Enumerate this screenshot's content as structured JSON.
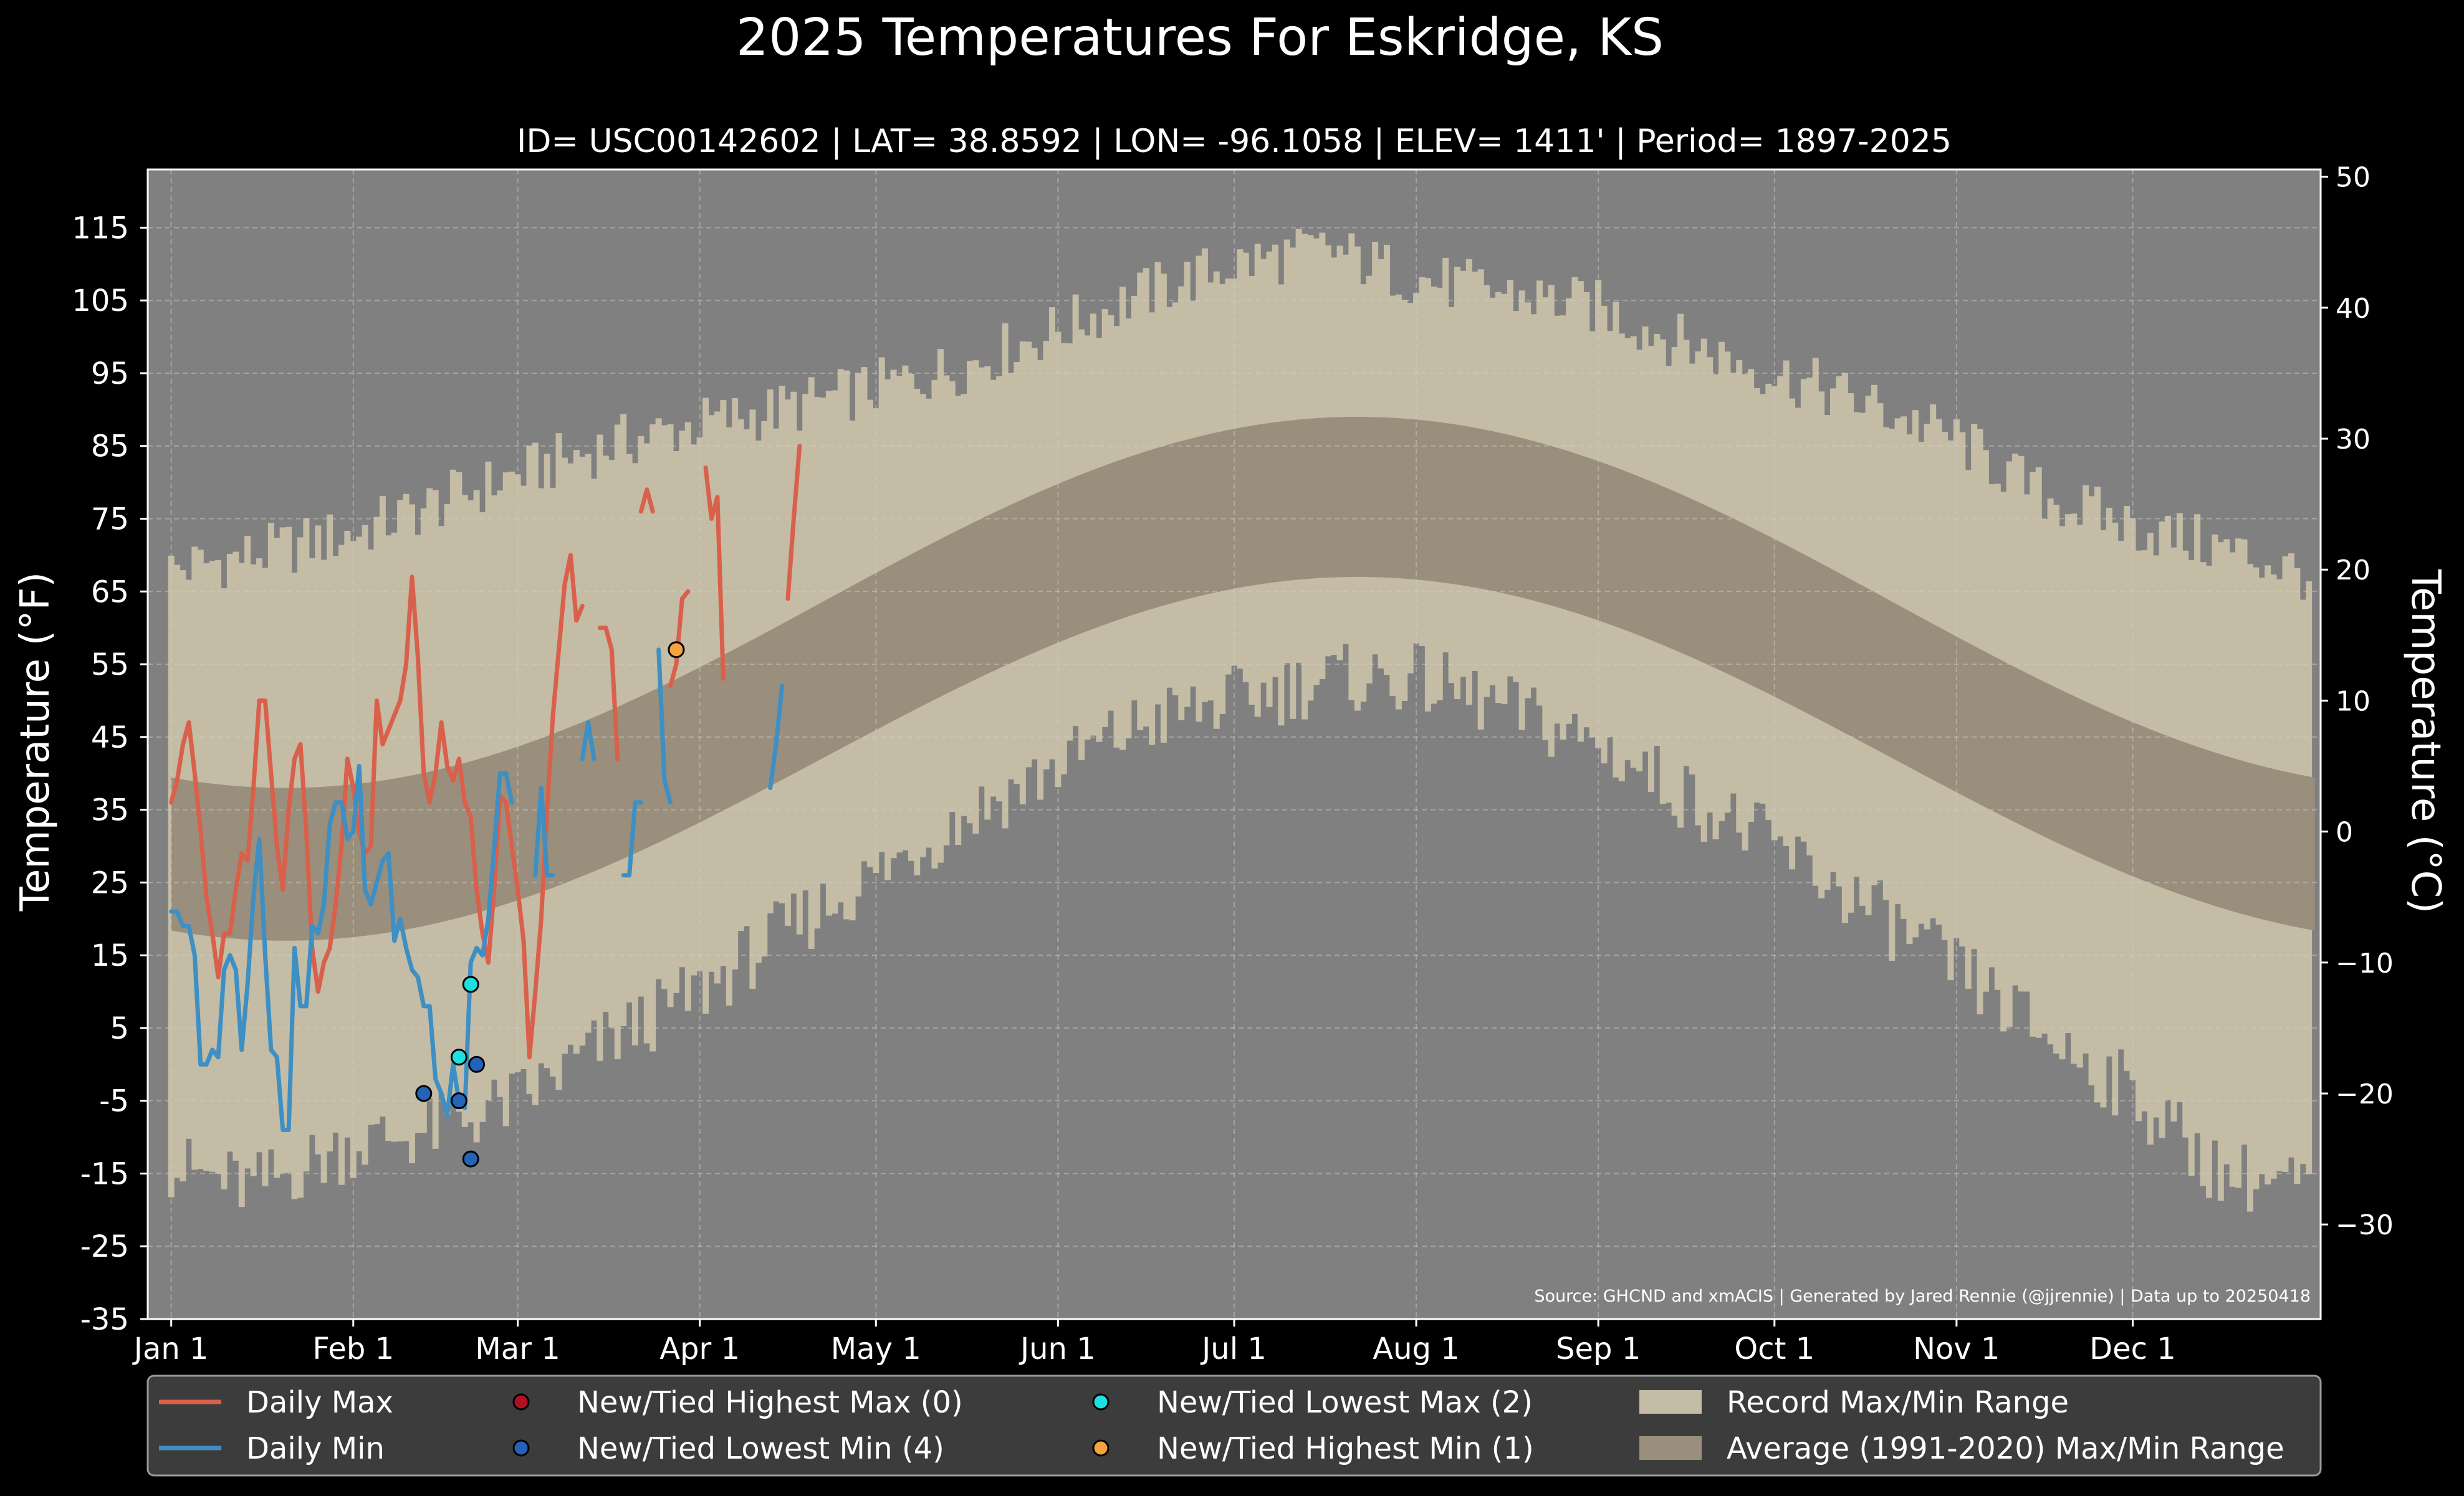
{
  "chart_data": {
    "type": "line",
    "title": "2025 Temperatures For Eskridge, KS",
    "subtitle": "ID= USC00142602 | LAT= 38.8592 | LON= -96.1058 | ELEV= 1411' | Period= 1897-2025",
    "ylabel_left": "Temperature ($^\\circ$F)",
    "ylabel_left_display": "Temperature (°F)",
    "ylabel_right_display": "Temperature (°C)",
    "ylim": [
      -35,
      123
    ],
    "yticks_left": [
      -35,
      -25,
      -15,
      -5,
      5,
      15,
      25,
      35,
      45,
      55,
      65,
      75,
      85,
      95,
      105,
      115
    ],
    "yticks_right": [
      -30,
      -20,
      -10,
      0,
      10,
      20,
      30,
      40,
      50
    ],
    "xlim_doy": [
      -3,
      367
    ],
    "xticks": [
      {
        "label": "Jan 1",
        "doy": 1
      },
      {
        "label": "Feb 1",
        "doy": 32
      },
      {
        "label": "Mar 1",
        "doy": 60
      },
      {
        "label": "Apr 1",
        "doy": 91
      },
      {
        "label": "May 1",
        "doy": 121
      },
      {
        "label": "Jun 1",
        "doy": 152
      },
      {
        "label": "Jul 1",
        "doy": 182
      },
      {
        "label": "Aug 1",
        "doy": 213
      },
      {
        "label": "Sep 1",
        "doy": 244
      },
      {
        "label": "Oct 1",
        "doy": 274
      },
      {
        "label": "Nov 1",
        "doy": 305
      },
      {
        "label": "Dec 1",
        "doy": 335
      }
    ],
    "grid": true,
    "legend_position": "bottom",
    "source_note": "Source: GHCND and xmACIS | Generated by Jared Rennie (@jjrennie) | Data up to 20250418",
    "record_max_anchors": [
      [
        1,
        68
      ],
      [
        15,
        70
      ],
      [
        32,
        73
      ],
      [
        46,
        77
      ],
      [
        60,
        81
      ],
      [
        75,
        85
      ],
      [
        91,
        88
      ],
      [
        105,
        90
      ],
      [
        121,
        93
      ],
      [
        136,
        96
      ],
      [
        152,
        101
      ],
      [
        167,
        106
      ],
      [
        182,
        110
      ],
      [
        198,
        112
      ],
      [
        213,
        108
      ],
      [
        228,
        106
      ],
      [
        244,
        104
      ],
      [
        259,
        99
      ],
      [
        274,
        95
      ],
      [
        289,
        91
      ],
      [
        305,
        86
      ],
      [
        320,
        78
      ],
      [
        335,
        74
      ],
      [
        350,
        71
      ],
      [
        366,
        67
      ]
    ],
    "record_min_anchors": [
      [
        1,
        -14
      ],
      [
        15,
        -17
      ],
      [
        32,
        -11
      ],
      [
        46,
        -9
      ],
      [
        60,
        -5
      ],
      [
        75,
        3
      ],
      [
        91,
        10
      ],
      [
        105,
        18
      ],
      [
        121,
        26
      ],
      [
        136,
        34
      ],
      [
        152,
        41
      ],
      [
        167,
        47
      ],
      [
        182,
        50
      ],
      [
        198,
        53
      ],
      [
        213,
        53
      ],
      [
        228,
        49
      ],
      [
        244,
        44
      ],
      [
        259,
        37
      ],
      [
        274,
        30
      ],
      [
        289,
        22
      ],
      [
        305,
        13
      ],
      [
        320,
        4
      ],
      [
        335,
        -4
      ],
      [
        350,
        -15
      ],
      [
        366,
        -17
      ]
    ],
    "series": [
      {
        "name": "Daily Max",
        "color": "#d9604b",
        "segments": [
          [
            [
              1,
              36
            ],
            [
              2,
              39
            ],
            [
              3,
              44
            ],
            [
              4,
              47
            ],
            [
              5,
              40
            ],
            [
              6,
              32
            ],
            [
              7,
              23
            ],
            [
              8,
              18
            ],
            [
              9,
              12
            ],
            [
              10,
              18
            ],
            [
              11,
              18
            ],
            [
              12,
              24
            ],
            [
              13,
              29
            ],
            [
              14,
              28
            ],
            [
              15,
              38
            ],
            [
              16,
              50
            ],
            [
              17,
              50
            ],
            [
              18,
              40
            ],
            [
              19,
              30
            ],
            [
              20,
              24
            ],
            [
              21,
              35
            ],
            [
              22,
              42
            ],
            [
              23,
              44
            ],
            [
              24,
              32
            ],
            [
              25,
              16
            ],
            [
              26,
              10
            ],
            [
              27,
              14
            ],
            [
              28,
              16
            ],
            [
              29,
              22
            ],
            [
              30,
              30
            ],
            [
              31,
              42
            ],
            [
              32,
              38
            ],
            [
              33,
              32
            ],
            [
              34,
              29
            ],
            [
              35,
              30
            ],
            [
              36,
              50
            ],
            [
              37,
              44
            ],
            [
              38,
              46
            ],
            [
              39,
              48
            ],
            [
              40,
              50
            ],
            [
              41,
              55
            ],
            [
              42,
              67
            ],
            [
              43,
              56
            ],
            [
              44,
              40
            ],
            [
              45,
              36
            ],
            [
              46,
              40
            ],
            [
              47,
              47
            ],
            [
              48,
              41
            ],
            [
              49,
              39
            ],
            [
              50,
              42
            ],
            [
              51,
              36
            ],
            [
              52,
              34
            ],
            [
              53,
              24
            ],
            [
              54,
              18
            ],
            [
              55,
              14
            ],
            [
              56,
              24
            ],
            [
              57,
              37
            ],
            [
              58,
              36
            ],
            [
              59,
              30
            ],
            [
              60,
              24
            ],
            [
              61,
              17
            ],
            [
              62,
              1
            ],
            [
              63,
              10
            ],
            [
              64,
              20
            ],
            [
              65,
              35
            ],
            [
              66,
              48
            ],
            [
              67,
              57
            ],
            [
              68,
              66
            ],
            [
              69,
              70
            ],
            [
              70,
              61
            ],
            [
              71,
              63
            ]
          ],
          [
            [
              74,
              60
            ],
            [
              75,
              60
            ],
            [
              76,
              57
            ],
            [
              77,
              42
            ]
          ],
          [
            [
              81,
              76
            ],
            [
              82,
              79
            ],
            [
              83,
              76
            ]
          ],
          [
            [
              86,
              52
            ],
            [
              87,
              55
            ],
            [
              88,
              64
            ],
            [
              89,
              65
            ]
          ],
          [
            [
              92,
              82
            ],
            [
              93,
              75
            ],
            [
              94,
              78
            ],
            [
              95,
              53
            ]
          ],
          [
            [
              106,
              64
            ],
            [
              107,
              75
            ],
            [
              108,
              85
            ]
          ]
        ]
      },
      {
        "name": "Daily Min",
        "color": "#3d8fc4",
        "segments": [
          [
            [
              1,
              21
            ],
            [
              2,
              21
            ],
            [
              3,
              19
            ],
            [
              4,
              19
            ],
            [
              5,
              15
            ],
            [
              6,
              0
            ],
            [
              7,
              0
            ],
            [
              8,
              2
            ],
            [
              9,
              1
            ],
            [
              10,
              13
            ],
            [
              11,
              15
            ],
            [
              12,
              13
            ],
            [
              13,
              2
            ],
            [
              14,
              11
            ],
            [
              15,
              23
            ],
            [
              16,
              31
            ],
            [
              17,
              15
            ],
            [
              18,
              2
            ],
            [
              19,
              1
            ],
            [
              20,
              -9
            ],
            [
              21,
              -9
            ],
            [
              22,
              16
            ],
            [
              23,
              8
            ],
            [
              24,
              8
            ],
            [
              25,
              19
            ],
            [
              26,
              18
            ],
            [
              27,
              22
            ],
            [
              28,
              33
            ],
            [
              29,
              36
            ],
            [
              30,
              36
            ],
            [
              31,
              31
            ],
            [
              32,
              32
            ],
            [
              33,
              41
            ],
            [
              34,
              24
            ],
            [
              35,
              22
            ],
            [
              36,
              25
            ],
            [
              37,
              28
            ],
            [
              38,
              29
            ],
            [
              39,
              17
            ],
            [
              40,
              20
            ],
            [
              41,
              16
            ],
            [
              42,
              13
            ],
            [
              43,
              12
            ],
            [
              44,
              8
            ],
            [
              45,
              8
            ],
            [
              46,
              -2
            ],
            [
              47,
              -4
            ],
            [
              48,
              -7
            ],
            [
              49,
              0
            ],
            [
              50,
              -5
            ],
            [
              51,
              -6
            ],
            [
              52,
              14
            ],
            [
              53,
              16
            ],
            [
              54,
              15
            ],
            [
              55,
              20
            ],
            [
              56,
              30
            ],
            [
              57,
              40
            ],
            [
              58,
              40
            ],
            [
              59,
              36
            ]
          ],
          [
            [
              63,
              26
            ],
            [
              64,
              38
            ],
            [
              65,
              26
            ],
            [
              66,
              26
            ]
          ],
          [
            [
              71,
              42
            ],
            [
              72,
              47
            ],
            [
              73,
              42
            ]
          ],
          [
            [
              78,
              26
            ],
            [
              79,
              26
            ],
            [
              80,
              36
            ],
            [
              81,
              36
            ]
          ],
          [
            [
              84,
              57
            ],
            [
              85,
              39
            ],
            [
              86,
              36
            ]
          ],
          [
            [
              103,
              38
            ],
            [
              104,
              44
            ],
            [
              105,
              52
            ]
          ]
        ]
      }
    ],
    "records": [
      {
        "name": "New/Tied Highest Max (0)",
        "color": "#b01020",
        "points": []
      },
      {
        "name": "New/Tied Lowest Min (4)",
        "color": "#2563b8",
        "points": [
          [
            44,
            -4
          ],
          [
            50,
            -5
          ],
          [
            52,
            -13
          ],
          [
            53,
            0
          ]
        ]
      },
      {
        "name": "New/Tied Lowest Max (2)",
        "color": "#1ee0e0",
        "points": [
          [
            50,
            1
          ],
          [
            52,
            11
          ]
        ]
      },
      {
        "name": "New/Tied Highest Min (1)",
        "color": "#f4a340",
        "points": [
          [
            87,
            57
          ]
        ]
      }
    ],
    "legend": [
      {
        "kind": "line",
        "label": "Daily Max",
        "color": "#d9604b"
      },
      {
        "kind": "line",
        "label": "Daily Min",
        "color": "#3d8fc4"
      },
      {
        "kind": "dot",
        "label": "New/Tied Highest Max (0)",
        "color": "#b01020"
      },
      {
        "kind": "dot",
        "label": "New/Tied Lowest Min (4)",
        "color": "#2563b8"
      },
      {
        "kind": "dot",
        "label": "New/Tied Lowest Max (2)",
        "color": "#1ee0e0"
      },
      {
        "kind": "dot",
        "label": "New/Tied Highest Min (1)",
        "color": "#f4a340"
      },
      {
        "kind": "box",
        "label": "Record Max/Min Range",
        "color": "#c4bca4"
      },
      {
        "kind": "box",
        "label": "Average (1991-2020) Max/Min Range",
        "color": "#9a8f7c"
      }
    ],
    "colors": {
      "background": "#000000",
      "plot_background": "#808080",
      "record_range": "#c4bca4",
      "normal_range": "#9a8f7c",
      "legend_background": "#3c3c3c"
    }
  }
}
